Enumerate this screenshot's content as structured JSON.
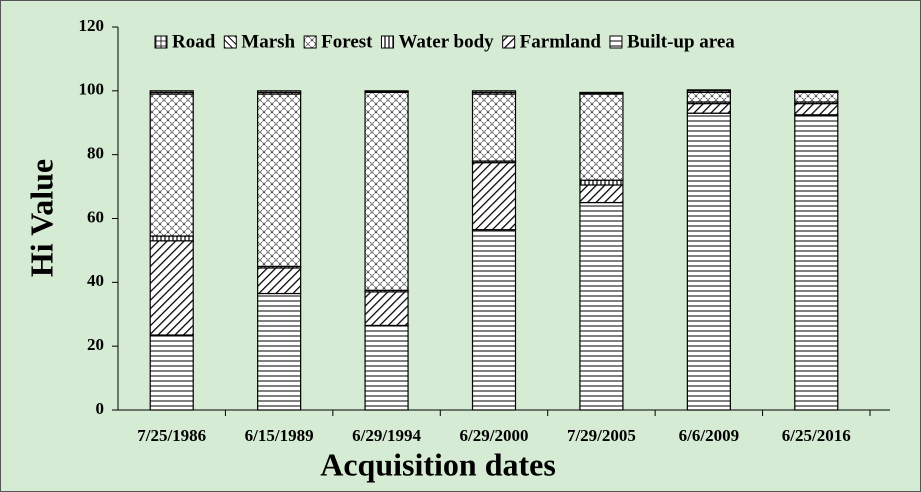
{
  "chart_data": {
    "type": "stacked-bar",
    "x_label": "Acquisition dates",
    "y_label": "Hi Value",
    "categories": [
      "7/25/1986",
      "6/15/1989",
      "6/29/1994",
      "6/29/2000",
      "7/29/2005",
      "6/6/2009",
      "6/25/2016"
    ],
    "series": [
      {
        "name": "Built-up area",
        "pattern": "horizontal",
        "values": [
          23.5,
          36.5,
          26.5,
          56.5,
          65,
          93,
          92.5
        ]
      },
      {
        "name": "Farmland",
        "pattern": "diagonal",
        "values": [
          29.5,
          8,
          10.5,
          21,
          5.5,
          3,
          3.5
        ]
      },
      {
        "name": "Water body",
        "pattern": "vertical",
        "values": [
          1.5,
          0.5,
          0.5,
          0.5,
          1.5,
          0.5,
          0.5
        ]
      },
      {
        "name": "Forest",
        "pattern": "cross",
        "values": [
          44.5,
          54,
          62,
          21,
          27,
          3,
          3
        ]
      },
      {
        "name": "Marsh",
        "pattern": "diagonal-reverse",
        "values": [
          0.5,
          0.5,
          0.3,
          0.5,
          0.3,
          0.5,
          0.3
        ]
      },
      {
        "name": "Road",
        "pattern": "grid",
        "values": [
          0.5,
          0.5,
          0.2,
          0.5,
          0.2,
          0.3,
          0.2
        ]
      }
    ],
    "ylim": [
      0,
      120
    ],
    "yticks": [
      0,
      20,
      40,
      60,
      80,
      100,
      120
    ],
    "legend": "top"
  }
}
